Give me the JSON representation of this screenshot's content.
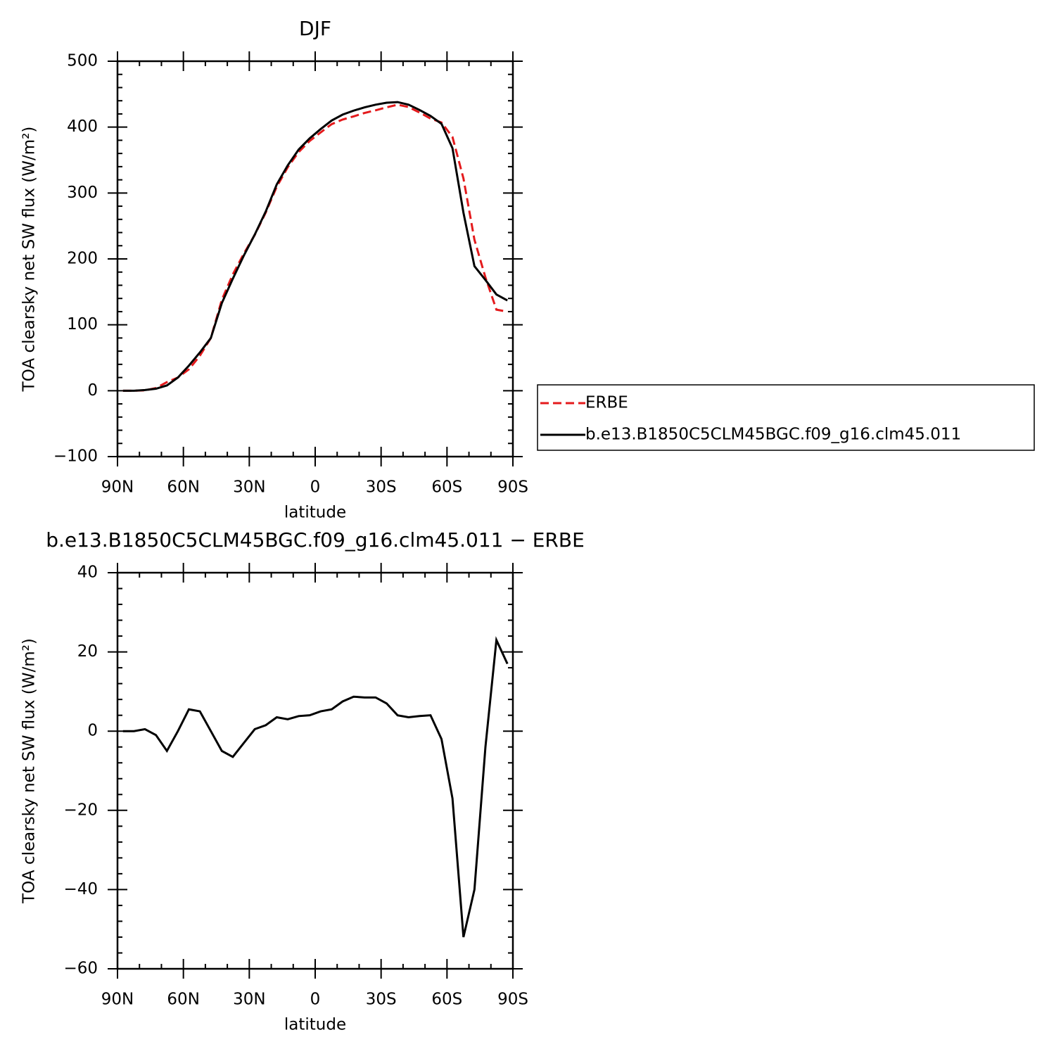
{
  "chart_data": [
    {
      "type": "line",
      "title": "DJF",
      "xlabel": "latitude",
      "ylabel": "TOA clearsky net SW flux (W/m²)",
      "x": [
        87.5,
        82.5,
        77.5,
        72.5,
        67.5,
        62.5,
        57.5,
        52.5,
        47.5,
        42.5,
        37.5,
        32.5,
        27.5,
        22.5,
        17.5,
        12.5,
        7.5,
        2.5,
        -2.5,
        -7.5,
        -12.5,
        -17.5,
        -22.5,
        -27.5,
        -32.5,
        -37.5,
        -42.5,
        -47.5,
        -52.5,
        -57.5,
        -62.5,
        -67.5,
        -72.5,
        -77.5,
        -82.5,
        -87.5
      ],
      "series": [
        {
          "name": "ERBE",
          "color": "#e41a1c",
          "linestyle": "dashed",
          "values": [
            0,
            0,
            0.5,
            4,
            13,
            20,
            32.5,
            53,
            80,
            138,
            176.5,
            208,
            236.5,
            270.5,
            309.5,
            339,
            362.2,
            379,
            392,
            404.5,
            411.5,
            416.3,
            421.5,
            425.5,
            430,
            434,
            430.5,
            422.2,
            413,
            407,
            385,
            322,
            229,
            172,
            123,
            120
          ]
        },
        {
          "name": "b.e13.B1850C5CLM45BGC.f09_g16.clm45.011",
          "color": "#000000",
          "linestyle": "solid",
          "values": [
            0,
            0,
            1,
            3,
            8,
            20,
            38,
            58,
            80,
            133,
            170,
            205,
            237,
            272,
            313,
            342,
            366,
            383,
            397,
            410,
            419,
            425,
            430,
            434,
            437,
            438,
            434,
            426,
            417,
            405,
            368,
            270,
            189,
            168,
            146,
            137
          ]
        }
      ],
      "xlim": [
        90,
        -90
      ],
      "xticks": [
        {
          "value": 90,
          "label": "90N"
        },
        {
          "value": 60,
          "label": "60N"
        },
        {
          "value": 30,
          "label": "30N"
        },
        0,
        {
          "value": -30,
          "label": "30S"
        },
        {
          "value": -60,
          "label": "60S"
        },
        {
          "value": -90,
          "label": "90S"
        }
      ],
      "ylim": [
        -100,
        500
      ],
      "yticks": [
        {
          "value": -100,
          "label": "−100"
        },
        0,
        100,
        200,
        300,
        400,
        500
      ],
      "legend": "right"
    },
    {
      "type": "line",
      "title": "b.e13.B1850C5CLM45BGC.f09_g16.clm45.011 − ERBE",
      "xlabel": "latitude",
      "ylabel": "TOA clearsky net SW flux (W/m²)",
      "x": [
        87.5,
        82.5,
        77.5,
        72.5,
        67.5,
        62.5,
        57.5,
        52.5,
        47.5,
        42.5,
        37.5,
        32.5,
        27.5,
        22.5,
        17.5,
        12.5,
        7.5,
        2.5,
        -2.5,
        -7.5,
        -12.5,
        -17.5,
        -22.5,
        -27.5,
        -32.5,
        -37.5,
        -42.5,
        -47.5,
        -52.5,
        -57.5,
        -62.5,
        -67.5,
        -72.5,
        -77.5,
        -82.5,
        -87.5
      ],
      "series": [
        {
          "color": "#000000",
          "linestyle": "solid",
          "values": [
            0,
            0,
            0.5,
            -1,
            -5,
            0,
            5.5,
            5,
            0,
            -5,
            -6.5,
            -3,
            0.5,
            1.5,
            3.5,
            3,
            3.8,
            4,
            5,
            5.5,
            7.5,
            8.7,
            8.5,
            8.5,
            7,
            4,
            3.5,
            3.8,
            4,
            -2,
            -17,
            -52,
            -40,
            -4,
            23,
            17
          ]
        }
      ],
      "xlim": [
        90,
        -90
      ],
      "xticks": [
        {
          "value": 90,
          "label": "90N"
        },
        {
          "value": 60,
          "label": "60N"
        },
        {
          "value": 30,
          "label": "30N"
        },
        0,
        {
          "value": -30,
          "label": "30S"
        },
        {
          "value": -60,
          "label": "60S"
        },
        {
          "value": -90,
          "label": "90S"
        }
      ],
      "ylim": [
        -60,
        40
      ],
      "yticks": [
        {
          "value": -60,
          "label": "−60"
        },
        {
          "value": -40,
          "label": "−40"
        },
        {
          "value": -20,
          "label": "−20"
        },
        0,
        20,
        40
      ]
    }
  ]
}
